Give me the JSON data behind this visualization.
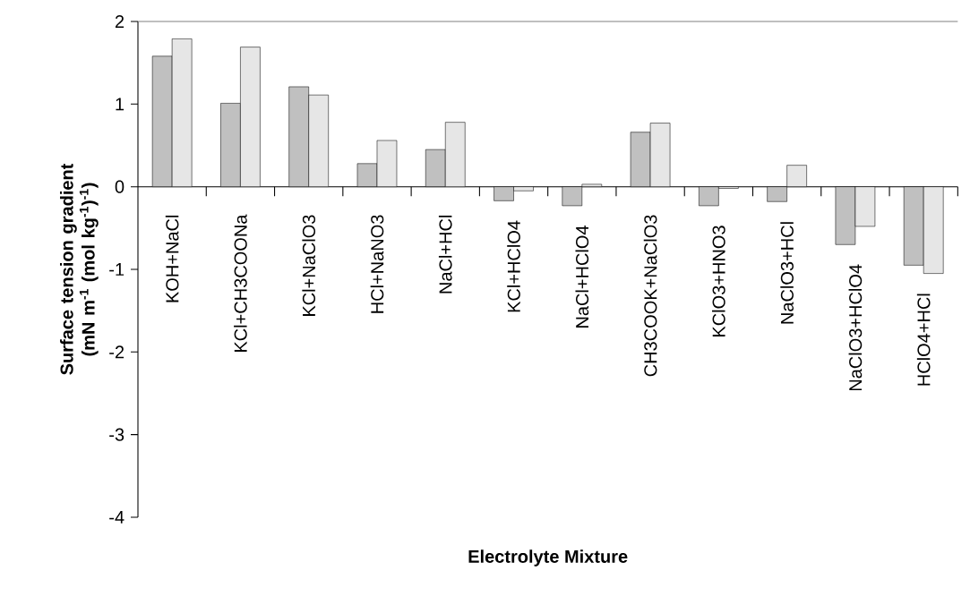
{
  "chart_data": {
    "type": "bar",
    "xlabel": "Electrolyte Mixture",
    "ylabel": "Surface tension gradient (mN m$^{-1}$ (mol kg$^{-1}$)$^{-1}$)",
    "categories": [
      "KOH+NaCl",
      "KCl+CH3COONa",
      "KCl+NaClO3",
      "HCl+NaNO3",
      "NaCl+HCl",
      "KCl+HClO4",
      "NaCl+HClO4",
      "CH3COOK+NaClO3",
      "KClO3+HNO3",
      "NaClO3+HCl",
      "NaClO3+HClO4",
      "HClO4+HCl"
    ],
    "series": [
      {
        "color": "#c0c0c0",
        "values": [
          1.58,
          1.01,
          1.21,
          0.28,
          0.45,
          -0.17,
          -0.23,
          0.66,
          -0.23,
          -0.18,
          -0.7,
          -0.95
        ]
      },
      {
        "color": "#e6e6e6",
        "values": [
          1.79,
          1.69,
          1.11,
          0.56,
          0.78,
          -0.05,
          0.03,
          0.77,
          -0.02,
          0.26,
          -0.48,
          -1.05
        ]
      }
    ],
    "ylim": [
      -4,
      2
    ],
    "yticks": [
      -4,
      -3,
      -2,
      -1,
      0,
      1,
      2
    ]
  }
}
